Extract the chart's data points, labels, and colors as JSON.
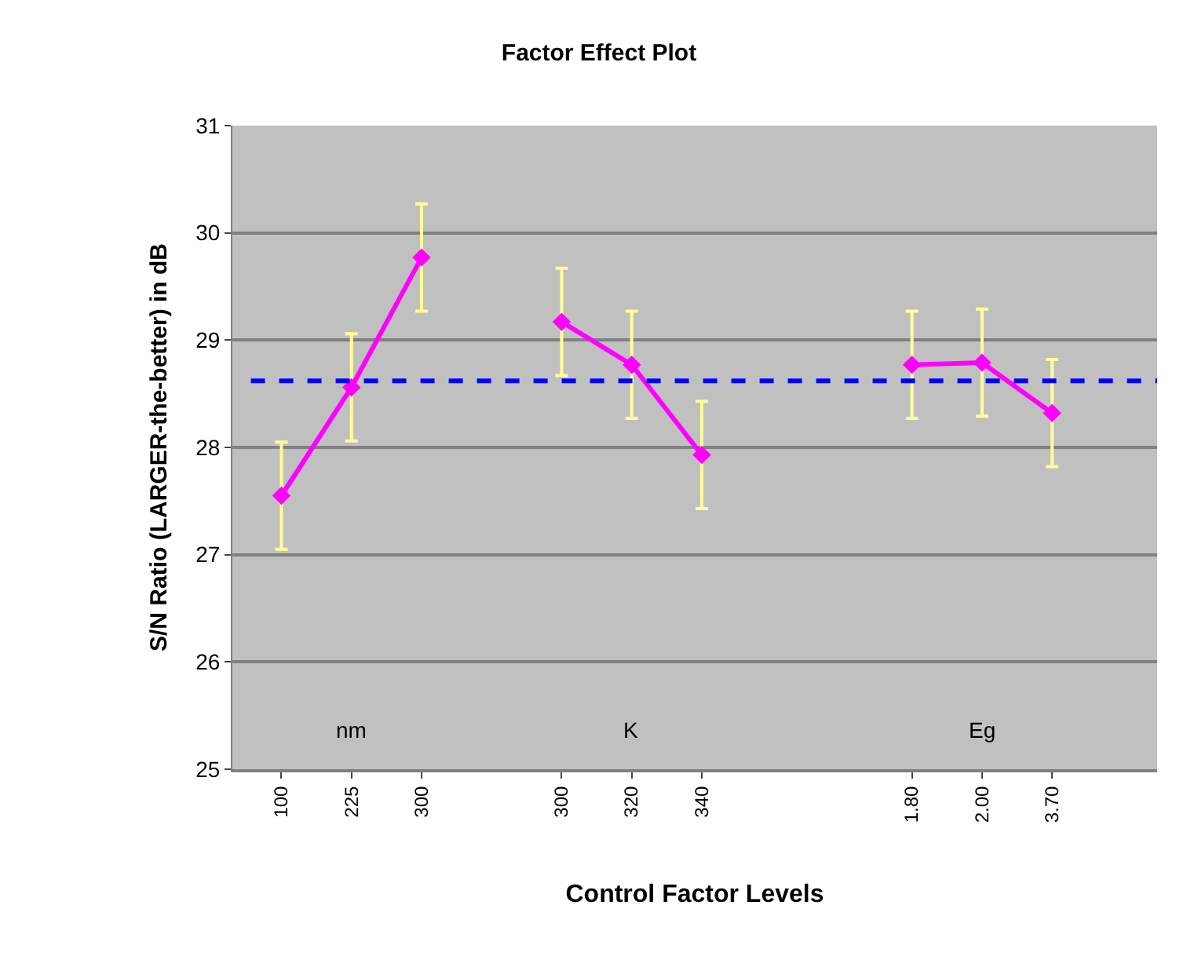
{
  "chart_data": {
    "type": "line",
    "title": "Factor Effect Plot",
    "xlabel": "Control Factor Levels",
    "ylabel": "S/N Ratio (LARGER-the-better) in dB",
    "categories": [
      "100",
      "225",
      "300",
      null,
      "300",
      "320",
      "340",
      null,
      null,
      "1.80",
      "2.00",
      "3.70",
      null
    ],
    "series": [
      {
        "color": "#ff00ff",
        "values": [
          27.55,
          28.56,
          29.77,
          null,
          29.17,
          28.77,
          27.93,
          null,
          null,
          28.77,
          28.79,
          28.32,
          null
        ],
        "errors": [
          0.5,
          0.5,
          0.5,
          null,
          0.5,
          0.5,
          0.5,
          null,
          null,
          0.5,
          0.5,
          0.5,
          null
        ]
      }
    ],
    "ylim": [
      25,
      31
    ],
    "yticks": [
      25,
      26,
      27,
      28,
      29,
      30,
      31
    ],
    "ref_lines": [
      {
        "axis": "y",
        "value": 28.62,
        "color": "#0000ff",
        "line_style": "dashed"
      }
    ],
    "annotations": [
      "nm",
      "K",
      "Eg"
    ],
    "grid": "y",
    "legend": false,
    "marker": "diamond",
    "line_style": "solid"
  }
}
